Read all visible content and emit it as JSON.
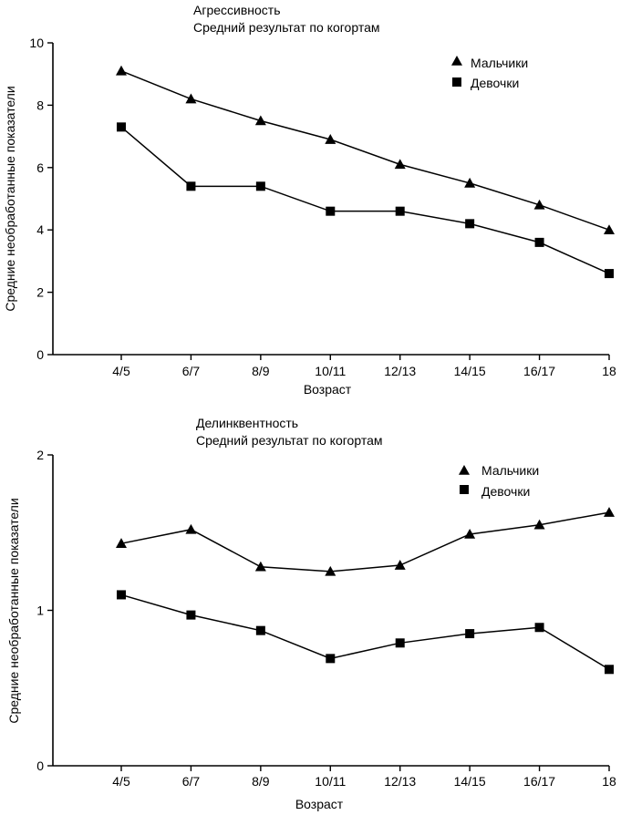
{
  "chart_data": [
    {
      "type": "line",
      "title": "Агрессивность",
      "subtitle": "Средний результат по когортам",
      "xlabel": "Возраст",
      "ylabel": "Средние необработанные показатели",
      "categories": [
        "4/5",
        "6/7",
        "8/9",
        "10/11",
        "12/13",
        "14/15",
        "16/17",
        "18"
      ],
      "ylim": [
        0,
        10
      ],
      "yticks": [
        0,
        2,
        4,
        6,
        8,
        10
      ],
      "grid": false,
      "legend_position": "top-right",
      "series": [
        {
          "name": "Мальчики",
          "marker": "triangle",
          "values": [
            9.1,
            8.2,
            7.5,
            6.9,
            6.1,
            5.5,
            4.8,
            4.0
          ]
        },
        {
          "name": "Девочки",
          "marker": "square",
          "values": [
            7.3,
            5.4,
            5.4,
            4.6,
            4.6,
            4.2,
            3.6,
            2.6
          ]
        }
      ]
    },
    {
      "type": "line",
      "title": "Делинквентность",
      "subtitle": "Средний результат по когортам",
      "xlabel": "Возраст",
      "ylabel": "Средние необработанные показатели",
      "categories": [
        "4/5",
        "6/7",
        "8/9",
        "10/11",
        "12/13",
        "14/15",
        "16/17",
        "18"
      ],
      "ylim": [
        0,
        2
      ],
      "yticks": [
        0,
        1,
        2
      ],
      "grid": false,
      "legend_position": "top-right",
      "series": [
        {
          "name": "Мальчики",
          "marker": "triangle",
          "values": [
            1.43,
            1.52,
            1.28,
            1.25,
            1.29,
            1.49,
            1.55,
            1.63
          ]
        },
        {
          "name": "Девочки",
          "marker": "square",
          "values": [
            1.1,
            0.97,
            0.87,
            0.69,
            0.79,
            0.85,
            0.89,
            0.62
          ]
        }
      ]
    }
  ]
}
